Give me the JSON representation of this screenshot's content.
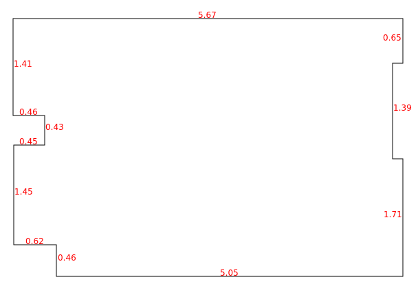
{
  "diagram": {
    "line_color": "#000000",
    "label_color": "#ff0000",
    "dimensions": [
      {
        "id": "top",
        "text": "5.67"
      },
      {
        "id": "right-top",
        "text": "0.65"
      },
      {
        "id": "right-notch-inner",
        "text": "1.39"
      },
      {
        "id": "right-bottom",
        "text": "1.71"
      },
      {
        "id": "bottom",
        "text": "5.05"
      },
      {
        "id": "left-bottom-step-vertical",
        "text": "0.46"
      },
      {
        "id": "left-bottom-step-horizontal",
        "text": "0.62"
      },
      {
        "id": "left-lower",
        "text": "1.45"
      },
      {
        "id": "left-notch-bottom",
        "text": "0.45"
      },
      {
        "id": "left-notch-side",
        "text": "0.43"
      },
      {
        "id": "left-notch-top",
        "text": "0.46"
      },
      {
        "id": "left-upper",
        "text": "1.41"
      }
    ]
  }
}
